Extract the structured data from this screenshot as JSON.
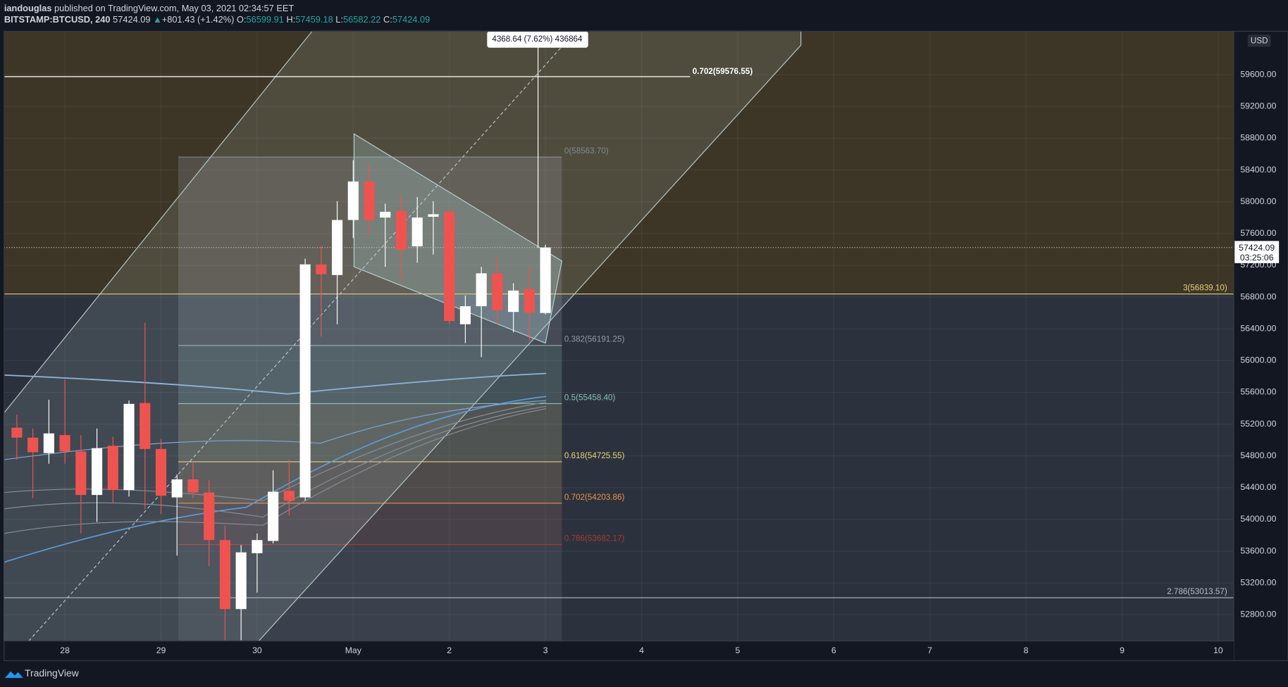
{
  "header": {
    "author": "iandouglas",
    "published": "published on TradingView.com, May 03, 2021 02:34:57 EET"
  },
  "footer": {
    "brand": "TradingView"
  },
  "chart_data": {
    "type": "candlestick",
    "symbol": "BITSTAMP:BTCUSD, 240",
    "change": "+801.43 (+1.42%)",
    "ohlc_labels": [
      "O:",
      "H:",
      "L:",
      "C:"
    ],
    "countdown": "03:25:06",
    "currency": "USD",
    "open": [
      55155,
      55030,
      54835,
      55062,
      54856,
      54308,
      54928,
      54370,
      55466,
      54887,
      54277,
      54504,
      54339,
      53740,
      52871,
      53574,
      53729,
      54360,
      54277,
      57212,
      57078,
      57771,
      58256,
      57802,
      57884,
      57440,
      57812,
      57874,
      56458,
      56685,
      57099,
      56613,
      56903,
      56599.91
    ],
    "high": [
      55321,
      55145,
      55507,
      55765,
      55062,
      55145,
      55042,
      55497,
      56478,
      55011,
      54566,
      54711,
      54494,
      53926,
      53678,
      53822,
      54618,
      54752,
      57285,
      57440,
      58008,
      58525,
      58473,
      57977,
      58091,
      58060,
      58008,
      57905,
      56820,
      57181,
      57305,
      56975,
      57181,
      57459.18
    ],
    "low": [
      54752,
      54267,
      54701,
      54701,
      53822,
      53967,
      54205,
      54287,
      54132,
      54070,
      53543,
      54267,
      53409,
      52479,
      52479,
      53078,
      53698,
      54049,
      54236,
      56303,
      56458,
      57543,
      57595,
      57181,
      57026,
      57233,
      57336,
      56458,
      56220,
      56044,
      56458,
      56355,
      56251,
      56582.22
    ],
    "close": [
      55030,
      54846,
      55083,
      54856,
      54308,
      54897,
      54370,
      55455,
      54887,
      54298,
      54504,
      54339,
      53740,
      52871,
      53585,
      53740,
      54349,
      54236,
      57212,
      57088,
      57771,
      58256,
      57771,
      57874,
      57398,
      57802,
      57843,
      56499,
      56685,
      57099,
      56634,
      56882,
      56603,
      57424.09
    ],
    "up_color": "#ffffff",
    "down_color": "#ef5350",
    "x_labels": [
      "28",
      "29",
      "30",
      "May",
      "2",
      "3",
      "4",
      "5",
      "6",
      "7",
      "8",
      "9",
      "10"
    ],
    "ylim": [
      52469,
      60148
    ],
    "yticks": [
      {
        "value": 52800,
        "label": "52800.00"
      },
      {
        "value": 53200,
        "label": "53200.00"
      },
      {
        "value": 53600,
        "label": "53600.00"
      },
      {
        "value": 54000,
        "label": "54000.00"
      },
      {
        "value": 54400,
        "label": "54400.00"
      },
      {
        "value": 54800,
        "label": "54800.00"
      },
      {
        "value": 55200,
        "label": "55200.00"
      },
      {
        "value": 55600,
        "label": "55600.00"
      },
      {
        "value": 56000,
        "label": "56000.00"
      },
      {
        "value": 56400,
        "label": "56400.00"
      },
      {
        "value": 56800,
        "label": "56800.00"
      },
      {
        "value": 57200,
        "label": "57200.00"
      },
      {
        "value": 57600,
        "label": "57600.00"
      },
      {
        "value": 58000,
        "label": "58000.00"
      },
      {
        "value": 58400,
        "label": "58400.00"
      },
      {
        "value": 58800,
        "label": "58800.00"
      },
      {
        "value": 59200,
        "label": "59200.00"
      },
      {
        "value": 59600,
        "label": "59600.00"
      }
    ],
    "grid": true,
    "fib_levels": [
      {
        "value": 58563.7,
        "label": "0(58563.70)",
        "color": "#787b86"
      },
      {
        "value": 56191.25,
        "label": "0.382(56191.25)",
        "color": "#9598a1"
      },
      {
        "value": 55458.4,
        "label": "0.5(55458.40)",
        "color": "#80c4b4"
      },
      {
        "value": 54725.55,
        "label": "0.618(54725.55)",
        "color": "#e6d27a"
      },
      {
        "value": 54203.86,
        "label": "0.702(54203.86)",
        "color": "#e8924a"
      },
      {
        "value": 53682.17,
        "label": "0.786(53682.17)",
        "color": "#a33a36"
      }
    ],
    "extension_levels": [
      {
        "value": 59576.55,
        "label": "0.702(59576.55)",
        "color": "#ffffff",
        "side": "left"
      },
      {
        "value": 56839.1,
        "label": "3(56839.10)",
        "color": "#e6cf7a",
        "side": "right"
      },
      {
        "value": 53013.57,
        "label": "2.786(53013.57)",
        "color": "#b2bcc6",
        "side": "right"
      }
    ],
    "measure": {
      "label": "4368.64 (7.62%) 436864"
    }
  }
}
